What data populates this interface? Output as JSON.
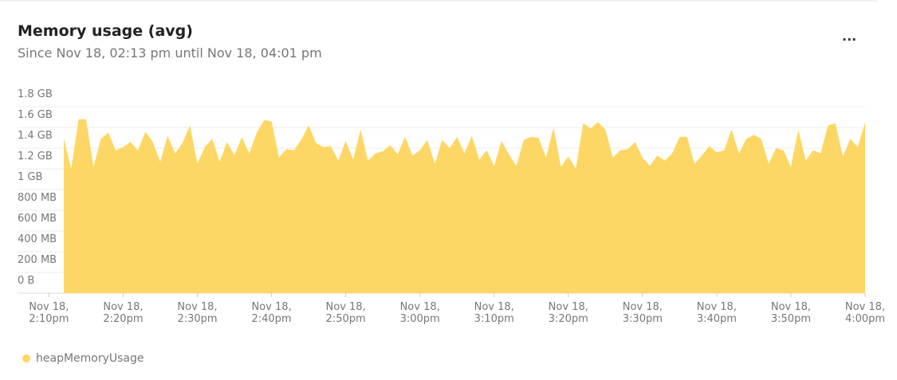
{
  "chart_data": {
    "type": "area",
    "title": "Memory usage (avg)",
    "subtitle": "Since Nov 18, 02:13 pm until Nov 18, 04:01 pm",
    "menu": "...",
    "x": [
      852,
      853,
      854,
      855,
      856,
      857,
      858,
      859,
      860,
      861,
      862,
      863,
      864,
      865,
      866,
      867,
      868,
      869,
      870,
      871,
      872,
      873,
      874,
      875,
      876,
      877,
      878,
      879,
      880,
      881,
      882,
      883,
      884,
      885,
      886,
      887,
      888,
      889,
      890,
      891,
      892,
      893,
      894,
      895,
      896,
      897,
      898,
      899,
      900,
      901,
      902,
      903,
      904,
      905,
      906,
      907,
      908,
      909,
      910,
      911,
      912,
      913,
      914,
      915,
      916,
      917,
      918,
      919,
      920,
      921,
      922,
      923,
      924,
      925,
      926,
      927,
      928,
      929,
      930,
      931,
      932,
      933,
      934,
      935,
      936,
      937,
      938,
      939,
      940,
      941,
      942,
      943,
      944,
      945,
      946,
      947,
      948,
      949,
      950,
      951,
      952,
      953,
      954,
      955,
      956,
      957,
      958,
      959,
      960
    ],
    "series": [
      {
        "name": "heapMemoryUsage",
        "color": "#fdd765",
        "values": [
          1.49,
          1.2,
          1.68,
          1.68,
          1.22,
          1.49,
          1.55,
          1.38,
          1.41,
          1.46,
          1.38,
          1.56,
          1.46,
          1.27,
          1.52,
          1.35,
          1.45,
          1.62,
          1.25,
          1.41,
          1.49,
          1.27,
          1.46,
          1.33,
          1.51,
          1.35,
          1.55,
          1.67,
          1.66,
          1.31,
          1.39,
          1.38,
          1.48,
          1.62,
          1.45,
          1.41,
          1.42,
          1.28,
          1.47,
          1.29,
          1.58,
          1.28,
          1.35,
          1.37,
          1.43,
          1.34,
          1.51,
          1.33,
          1.38,
          1.48,
          1.25,
          1.48,
          1.4,
          1.51,
          1.35,
          1.52,
          1.29,
          1.38,
          1.23,
          1.47,
          1.34,
          1.23,
          1.48,
          1.51,
          1.5,
          1.31,
          1.6,
          1.22,
          1.32,
          1.2,
          1.64,
          1.59,
          1.65,
          1.58,
          1.31,
          1.38,
          1.39,
          1.46,
          1.31,
          1.23,
          1.33,
          1.28,
          1.35,
          1.51,
          1.51,
          1.25,
          1.33,
          1.42,
          1.36,
          1.38,
          1.58,
          1.35,
          1.49,
          1.53,
          1.49,
          1.25,
          1.4,
          1.38,
          1.22,
          1.58,
          1.28,
          1.38,
          1.35,
          1.62,
          1.64,
          1.32,
          1.49,
          1.41,
          1.65
        ]
      }
    ],
    "xlim": [
      852,
      960
    ],
    "xticks": [
      {
        "value": 850,
        "label": "Nov 18,\n2:10pm"
      },
      {
        "value": 860,
        "label": "Nov 18,\n2:20pm"
      },
      {
        "value": 870,
        "label": "Nov 18,\n2:30pm"
      },
      {
        "value": 880,
        "label": "Nov 18,\n2:40pm"
      },
      {
        "value": 890,
        "label": "Nov 18,\n2:50pm"
      },
      {
        "value": 900,
        "label": "Nov 18,\n3:00pm"
      },
      {
        "value": 910,
        "label": "Nov 18,\n3:10pm"
      },
      {
        "value": 920,
        "label": "Nov 18,\n3:20pm"
      },
      {
        "value": 930,
        "label": "Nov 18,\n3:30pm"
      },
      {
        "value": 940,
        "label": "Nov 18,\n3:40pm"
      },
      {
        "value": 950,
        "label": "Nov 18,\n3:50pm"
      },
      {
        "value": 960,
        "label": "Nov 18,\n4:00pm"
      }
    ],
    "ylim": [
      0,
      1.8
    ],
    "yticks": [
      {
        "value": 0,
        "label": "0 B"
      },
      {
        "value": 0.2,
        "label": "200 MB"
      },
      {
        "value": 0.4,
        "label": "400 MB"
      },
      {
        "value": 0.6,
        "label": "600 MB"
      },
      {
        "value": 0.8,
        "label": "800 MB"
      },
      {
        "value": 1,
        "label": "1 GB"
      },
      {
        "value": 1.2,
        "label": "1.2 GB"
      },
      {
        "value": 1.4,
        "label": "1.4 GB"
      },
      {
        "value": 1.6,
        "label": "1.6 GB"
      },
      {
        "value": 1.8,
        "label": "1.8 GB"
      }
    ],
    "grid": true
  }
}
